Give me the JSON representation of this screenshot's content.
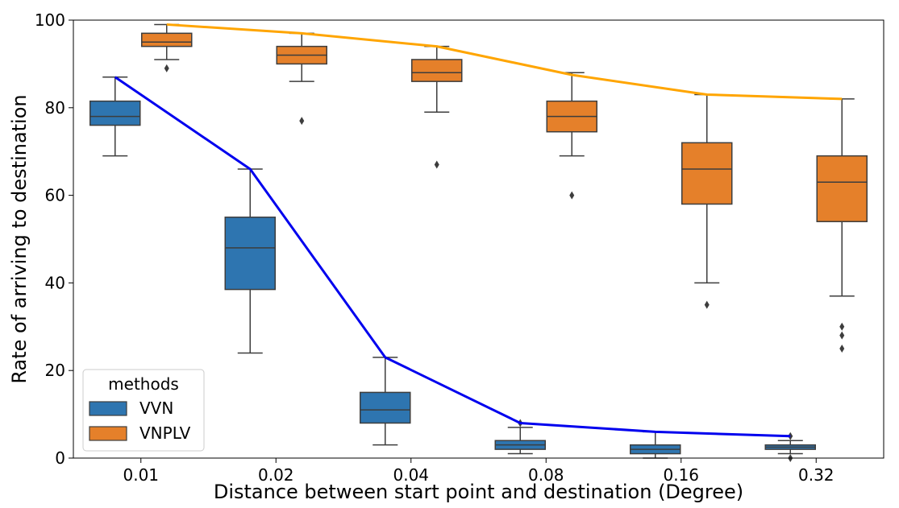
{
  "chart_data": {
    "type": "box",
    "xlabel": "Distance between start point and destination (Degree)",
    "ylabel": "Rate of arriving to destination",
    "categories": [
      "0.01",
      "0.02",
      "0.04",
      "0.08",
      "0.16",
      "0.32"
    ],
    "ylim": [
      0,
      100
    ],
    "yticks": [
      0,
      20,
      40,
      60,
      80,
      100
    ],
    "grid": false,
    "legend": {
      "title": "methods",
      "position": "lower-left",
      "entries": [
        "VVN",
        "VNPLV"
      ]
    },
    "series": [
      {
        "name": "VVN",
        "color": "#2e75b0",
        "boxes": [
          {
            "whisker_low": 69,
            "q1": 76,
            "median": 78,
            "q3": 81.5,
            "whisker_high": 87,
            "outliers": []
          },
          {
            "whisker_low": 24,
            "q1": 38.5,
            "median": 48,
            "q3": 55,
            "whisker_high": 66,
            "outliers": []
          },
          {
            "whisker_low": 3,
            "q1": 8,
            "median": 11,
            "q3": 15,
            "whisker_high": 23,
            "outliers": []
          },
          {
            "whisker_low": 1,
            "q1": 2,
            "median": 3,
            "q3": 4,
            "whisker_high": 7,
            "outliers": [
              8
            ]
          },
          {
            "whisker_low": 0,
            "q1": 1,
            "median": 2,
            "q3": 3,
            "whisker_high": 6,
            "outliers": []
          },
          {
            "whisker_low": 1,
            "q1": 2,
            "median": 2.5,
            "q3": 3,
            "whisker_high": 4,
            "outliers": [
              5,
              0
            ]
          }
        ]
      },
      {
        "name": "VNPLV",
        "color": "#e5802a",
        "boxes": [
          {
            "whisker_low": 91,
            "q1": 94,
            "median": 95,
            "q3": 97,
            "whisker_high": 99,
            "outliers": [
              89
            ]
          },
          {
            "whisker_low": 86,
            "q1": 90,
            "median": 92,
            "q3": 94,
            "whisker_high": 97,
            "outliers": [
              77
            ]
          },
          {
            "whisker_low": 79,
            "q1": 86,
            "median": 88,
            "q3": 91,
            "whisker_high": 94,
            "outliers": [
              67
            ]
          },
          {
            "whisker_low": 69,
            "q1": 74.5,
            "median": 78,
            "q3": 81.5,
            "whisker_high": 88,
            "outliers": [
              60
            ]
          },
          {
            "whisker_low": 40,
            "q1": 58,
            "median": 66,
            "q3": 72,
            "whisker_high": 83,
            "outliers": [
              35
            ]
          },
          {
            "whisker_low": 37,
            "q1": 54,
            "median": 63,
            "q3": 69,
            "whisker_high": 82,
            "outliers": [
              30,
              28,
              25
            ]
          }
        ]
      }
    ],
    "lines": [
      {
        "name": "VVN",
        "color": "#0000ee",
        "values": [
          87,
          66,
          23,
          8,
          6,
          5
        ]
      },
      {
        "name": "VNPLV",
        "color": "#ffa500",
        "values": [
          99,
          97,
          94,
          87.5,
          83,
          82
        ]
      }
    ]
  }
}
